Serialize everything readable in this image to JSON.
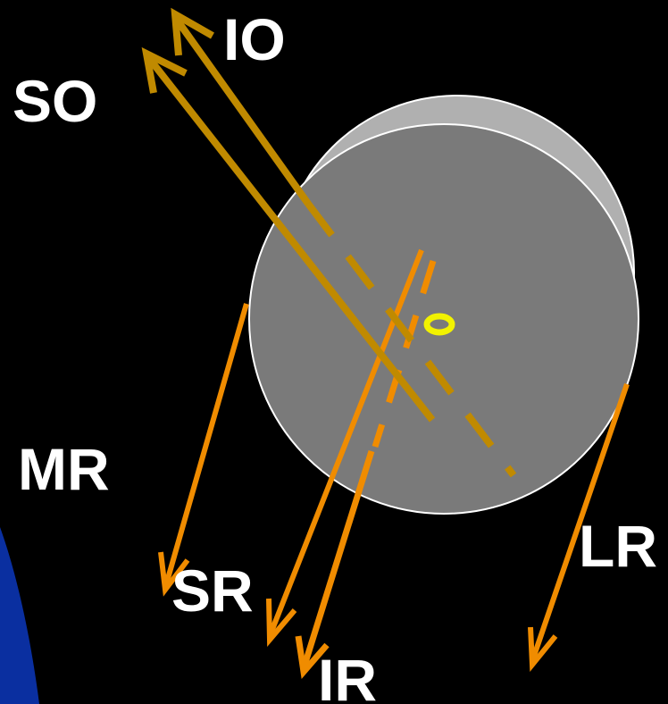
{
  "labels": {
    "io": "IO",
    "so": "SO",
    "mr": "MR",
    "sr": "SR",
    "lr": "LR",
    "ir": "IR"
  },
  "colors": {
    "background": "#000000",
    "blue_region": "#0A2FA0",
    "eye_back": "#B0B0B0",
    "eye_front": "#7A7A7A",
    "eye_outline": "#FFFFFF",
    "oblique_muscles": "#C08A00",
    "rectus_muscles": "#F08C00",
    "optic_nerve_marker": "#F2F200",
    "label_text": "#FFFFFF"
  },
  "icons": {
    "eyeball": "eyeball-globe",
    "optic_nerve": "yellow-ring-marker",
    "muscle_pull": "arrow"
  }
}
